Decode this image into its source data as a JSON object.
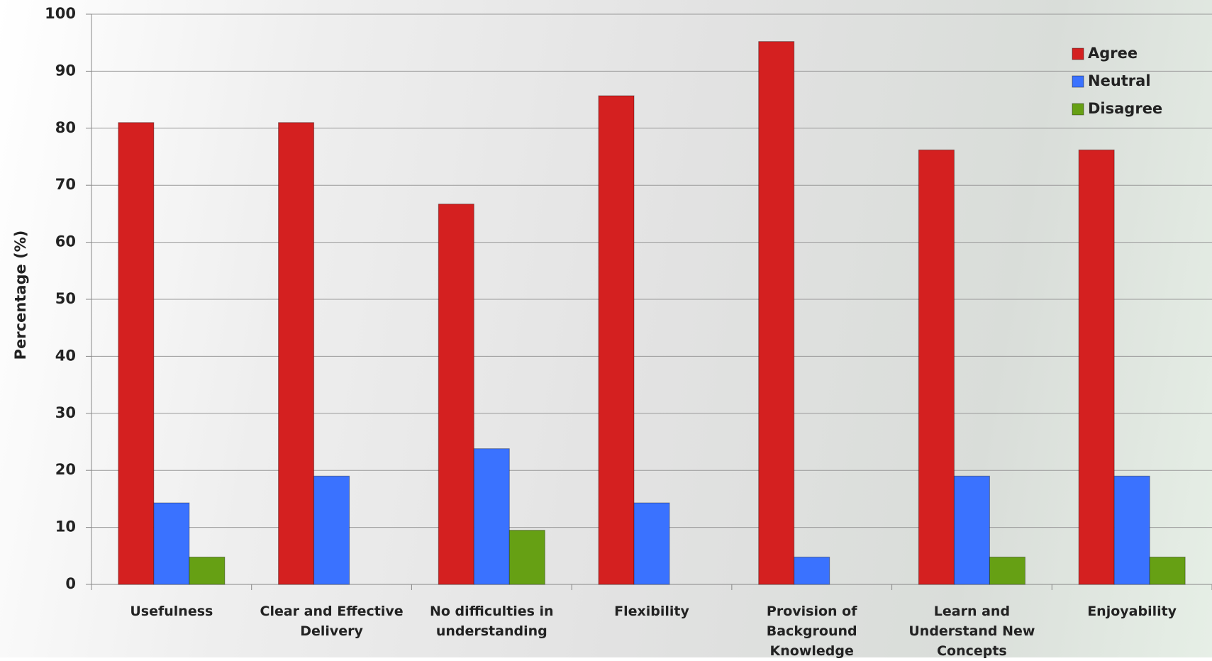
{
  "chart_data": {
    "type": "bar",
    "y_label": "Percentage (%)",
    "categories": [
      "Usefulness",
      "Clear and Effective Delivery",
      "No difficulties in understanding",
      "Flexibility",
      "Provision of Background Knowledge",
      "Learn and Understand New Concepts",
      "Enjoyability"
    ],
    "series": [
      {
        "name": "Agree",
        "color": "#d42020",
        "values": [
          81,
          81,
          66.7,
          85.7,
          95.2,
          76.2,
          76.2
        ]
      },
      {
        "name": "Neutral",
        "color": "#3a72ff",
        "values": [
          14.3,
          19,
          23.8,
          14.3,
          4.8,
          19,
          19
        ]
      },
      {
        "name": "Disagree",
        "color": "#66a014",
        "values": [
          4.8,
          0,
          9.5,
          0,
          0,
          4.8,
          4.8
        ]
      }
    ],
    "ylim": [
      0,
      100
    ],
    "yticks": [
      0,
      10,
      20,
      30,
      40,
      50,
      60,
      70,
      80,
      90,
      100
    ],
    "grid": true
  }
}
